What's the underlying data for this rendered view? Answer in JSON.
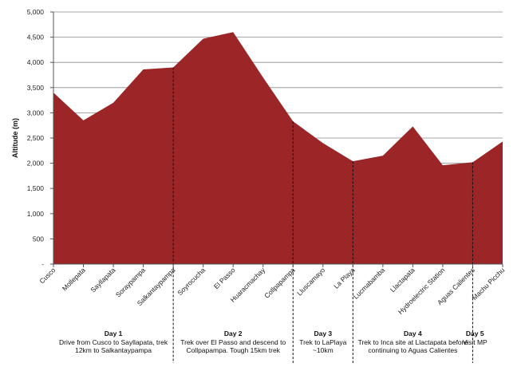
{
  "chart_data": {
    "type": "area",
    "ylabel": "Altitude (m)",
    "xlabel": "",
    "ylim": [
      0,
      5000
    ],
    "yticks": [
      {
        "value": 0,
        "label": "-"
      },
      {
        "value": 500,
        "label": "500"
      },
      {
        "value": 1000,
        "label": "1,000"
      },
      {
        "value": 1500,
        "label": "1,500"
      },
      {
        "value": 2000,
        "label": "2,000"
      },
      {
        "value": 2500,
        "label": "2,500"
      },
      {
        "value": 3000,
        "label": "3,000"
      },
      {
        "value": 3500,
        "label": "3,500"
      },
      {
        "value": 4000,
        "label": "4,000"
      },
      {
        "value": 4500,
        "label": "4,500"
      },
      {
        "value": 5000,
        "label": "5,000"
      }
    ],
    "grid": true,
    "fill_color": "#9b2527",
    "categories": [
      "Cusco",
      "Mollepata",
      "Sayllapata",
      "Soraypampa",
      "Salkantaypampa",
      "Soyrocucha",
      "El Passo",
      "Huaracmachay",
      "Collpapampa",
      "Lluscamayo",
      "La Playa",
      "Lucmabamba",
      "Llactapata",
      "Hydroelectric Station",
      "Aguas Calientes",
      "Machu Picchu"
    ],
    "values": [
      3400,
      2850,
      3200,
      3860,
      3900,
      4470,
      4600,
      3700,
      2830,
      2400,
      2040,
      2150,
      2730,
      1960,
      2020,
      2430
    ],
    "day_dividers": [
      4,
      8,
      10,
      14
    ],
    "days": [
      {
        "title": "Day 1",
        "desc": "Drive from Cusco to Sayllapata, trek 12km to Salkantaypampa"
      },
      {
        "title": "Day 2",
        "desc": "Trek over El Passo and descend to Collpapampa. Tough 15km trek"
      },
      {
        "title": "Day 3",
        "desc": "Trek to LaPlaya ~10km"
      },
      {
        "title": "Day 4",
        "desc": "Trek to Inca site at Llactapata before continuing to Aguas Calientes"
      },
      {
        "title": "Day 5",
        "desc": "Visit MP"
      }
    ]
  }
}
